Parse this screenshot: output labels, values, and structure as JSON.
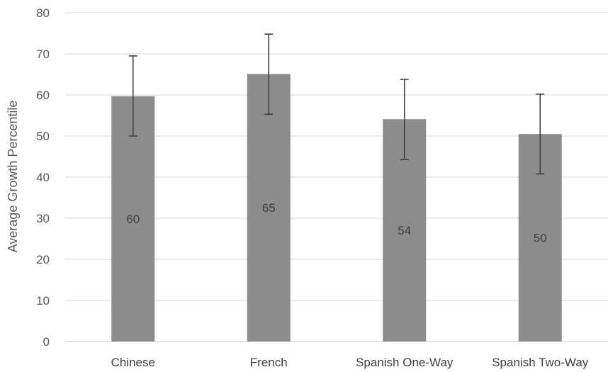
{
  "chart_data": {
    "type": "bar",
    "title": "",
    "xlabel": "",
    "ylabel": "Average Growth Percentile",
    "ylim": [
      0,
      80
    ],
    "yticks": [
      0,
      10,
      20,
      30,
      40,
      50,
      60,
      70,
      80
    ],
    "categories": [
      "Chinese",
      "French",
      "Spanish One-Way",
      "Spanish Two-Way"
    ],
    "values": [
      59.7,
      65.1,
      54.1,
      50.5
    ],
    "data_labels": [
      "60",
      "65",
      "54",
      "50"
    ],
    "error_bars": [
      {
        "low": 50.0,
        "high": 69.5
      },
      {
        "low": 55.3,
        "high": 74.8
      },
      {
        "low": 44.3,
        "high": 63.8
      },
      {
        "low": 40.8,
        "high": 60.2
      }
    ],
    "grid": true,
    "legend": "none",
    "colors": {
      "bar": "#8c8c8c",
      "error_bar": "#404040",
      "grid": "#d9d9d9",
      "text": "#595959"
    }
  }
}
